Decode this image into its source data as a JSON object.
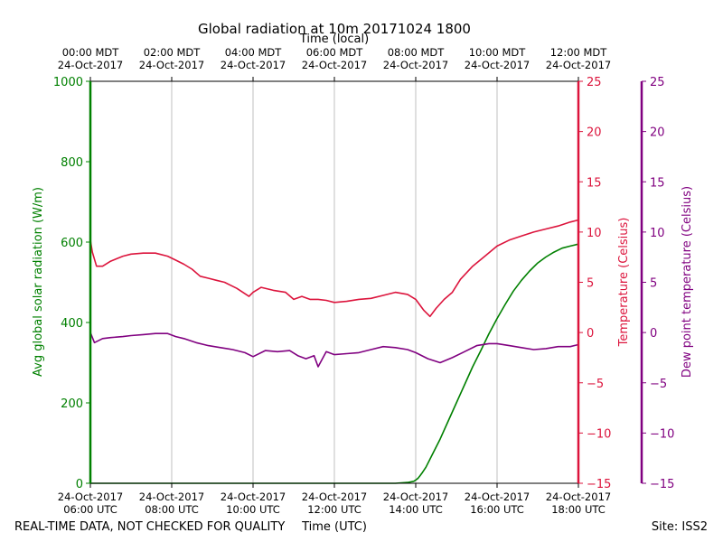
{
  "chart_data": {
    "type": "line",
    "title": "Global radiation at 10m 20171024 1800",
    "top_axis_label": "Time (local)",
    "xlabel": "Time (UTC)",
    "footer_left": "REAL-TIME DATA, NOT CHECKED FOR QUALITY",
    "footer_right": "Site: ISS2",
    "x_range_hours_utc": [
      6,
      18
    ],
    "bottom_ticks": [
      {
        "hour": 6,
        "date": "24-Oct-2017",
        "time": "06:00 UTC"
      },
      {
        "hour": 8,
        "date": "24-Oct-2017",
        "time": "08:00 UTC"
      },
      {
        "hour": 10,
        "date": "24-Oct-2017",
        "time": "10:00 UTC"
      },
      {
        "hour": 12,
        "date": "24-Oct-2017",
        "time": "12:00 UTC"
      },
      {
        "hour": 14,
        "date": "24-Oct-2017",
        "time": "14:00 UTC"
      },
      {
        "hour": 16,
        "date": "24-Oct-2017",
        "time": "16:00 UTC"
      },
      {
        "hour": 18,
        "date": "24-Oct-2017",
        "time": "18:00 UTC"
      }
    ],
    "top_ticks": [
      {
        "hour": 6,
        "time": "00:00 MDT",
        "date": "24-Oct-2017"
      },
      {
        "hour": 8,
        "time": "02:00 MDT",
        "date": "24-Oct-2017"
      },
      {
        "hour": 10,
        "time": "04:00 MDT",
        "date": "24-Oct-2017"
      },
      {
        "hour": 12,
        "time": "06:00 MDT",
        "date": "24-Oct-2017"
      },
      {
        "hour": 14,
        "time": "08:00 MDT",
        "date": "24-Oct-2017"
      },
      {
        "hour": 16,
        "time": "10:00 MDT",
        "date": "24-Oct-2017"
      },
      {
        "hour": 18,
        "time": "12:00 MDT",
        "date": "24-Oct-2017"
      }
    ],
    "axes": {
      "radiation": {
        "label": "Avg global solar radiation (W/m)",
        "range": [
          0,
          1000
        ],
        "ticks": [
          0,
          200,
          400,
          600,
          800,
          1000
        ],
        "color": "#008000"
      },
      "temperature": {
        "label": "Temperature (Celsius)",
        "range": [
          -15,
          25
        ],
        "ticks": [
          -15,
          -10,
          -5,
          0,
          5,
          10,
          15,
          20,
          25
        ],
        "tick_labels": [
          "−15",
          "−10",
          "−5",
          "0",
          "5",
          "10",
          "15",
          "20",
          "25"
        ],
        "color": "#dc143c"
      },
      "dewpoint": {
        "label": "Dew point temperature (Celsius)",
        "range": [
          -15,
          25
        ],
        "ticks": [
          -15,
          -10,
          -5,
          0,
          5,
          10,
          15,
          20,
          25
        ],
        "tick_labels": [
          "−15",
          "−10",
          "−5",
          "0",
          "5",
          "10",
          "15",
          "20",
          "25"
        ],
        "color": "#800080"
      }
    },
    "series": [
      {
        "name": "Avg global solar radiation",
        "axis": "radiation",
        "color": "#008000",
        "x": [
          6.0,
          7,
          8,
          9,
          10,
          11,
          12,
          13,
          13.5,
          13.8,
          13.95,
          14.0,
          14.05,
          14.1,
          14.15,
          14.25,
          14.4,
          14.6,
          14.8,
          15.0,
          15.2,
          15.4,
          15.6,
          15.8,
          16.0,
          16.2,
          16.4,
          16.6,
          16.8,
          17.0,
          17.2,
          17.4,
          17.6,
          17.8,
          18.0
        ],
        "y": [
          0,
          0,
          0,
          0,
          0,
          0,
          0,
          0,
          0,
          2,
          5,
          8,
          12,
          18,
          25,
          40,
          70,
          110,
          155,
          200,
          245,
          290,
          330,
          372,
          410,
          445,
          478,
          505,
          528,
          548,
          563,
          575,
          585,
          590,
          595
        ]
      },
      {
        "name": "Temperature",
        "axis": "temperature",
        "color": "#dc143c",
        "x": [
          6.0,
          6.05,
          6.15,
          6.3,
          6.5,
          6.8,
          7.0,
          7.3,
          7.6,
          7.9,
          8.1,
          8.3,
          8.5,
          8.7,
          8.9,
          9.1,
          9.3,
          9.6,
          9.9,
          10.0,
          10.2,
          10.5,
          10.8,
          11.0,
          11.2,
          11.4,
          11.6,
          11.8,
          12.0,
          12.3,
          12.6,
          12.9,
          13.2,
          13.5,
          13.8,
          14.0,
          14.2,
          14.35,
          14.5,
          14.7,
          14.9,
          15.1,
          15.4,
          15.7,
          16.0,
          16.3,
          16.6,
          16.9,
          17.2,
          17.5,
          17.8,
          18.0
        ],
        "y": [
          9.2,
          8.0,
          6.6,
          6.6,
          7.1,
          7.6,
          7.8,
          7.9,
          7.9,
          7.6,
          7.2,
          6.8,
          6.3,
          5.6,
          5.4,
          5.2,
          5.0,
          4.4,
          3.6,
          4.0,
          4.5,
          4.2,
          4.0,
          3.3,
          3.6,
          3.3,
          3.3,
          3.2,
          3.0,
          3.1,
          3.3,
          3.4,
          3.7,
          4.0,
          3.8,
          3.3,
          2.2,
          1.6,
          2.4,
          3.3,
          4.0,
          5.3,
          6.6,
          7.6,
          8.6,
          9.2,
          9.6,
          10.0,
          10.3,
          10.6,
          11.0,
          11.2
        ]
      },
      {
        "name": "Dew point temperature",
        "axis": "dewpoint",
        "color": "#800080",
        "x": [
          6.0,
          6.1,
          6.3,
          6.5,
          6.8,
          7.0,
          7.3,
          7.6,
          7.9,
          8.1,
          8.3,
          8.6,
          8.9,
          9.2,
          9.5,
          9.8,
          10.0,
          10.3,
          10.6,
          10.9,
          11.1,
          11.3,
          11.5,
          11.6,
          11.8,
          12.0,
          12.3,
          12.6,
          12.9,
          13.2,
          13.5,
          13.8,
          14.0,
          14.3,
          14.6,
          14.9,
          15.2,
          15.5,
          15.8,
          16.0,
          16.3,
          16.6,
          16.9,
          17.2,
          17.5,
          17.8,
          18.0
        ],
        "y": [
          0.0,
          -1.0,
          -0.6,
          -0.5,
          -0.4,
          -0.3,
          -0.2,
          -0.1,
          -0.1,
          -0.4,
          -0.6,
          -1.0,
          -1.3,
          -1.5,
          -1.7,
          -2.0,
          -2.4,
          -1.8,
          -1.9,
          -1.8,
          -2.3,
          -2.6,
          -2.3,
          -3.4,
          -1.9,
          -2.2,
          -2.1,
          -2.0,
          -1.7,
          -1.4,
          -1.5,
          -1.7,
          -2.0,
          -2.6,
          -3.0,
          -2.5,
          -1.9,
          -1.3,
          -1.1,
          -1.1,
          -1.3,
          -1.5,
          -1.7,
          -1.6,
          -1.4,
          -1.4,
          -1.2
        ]
      }
    ]
  }
}
